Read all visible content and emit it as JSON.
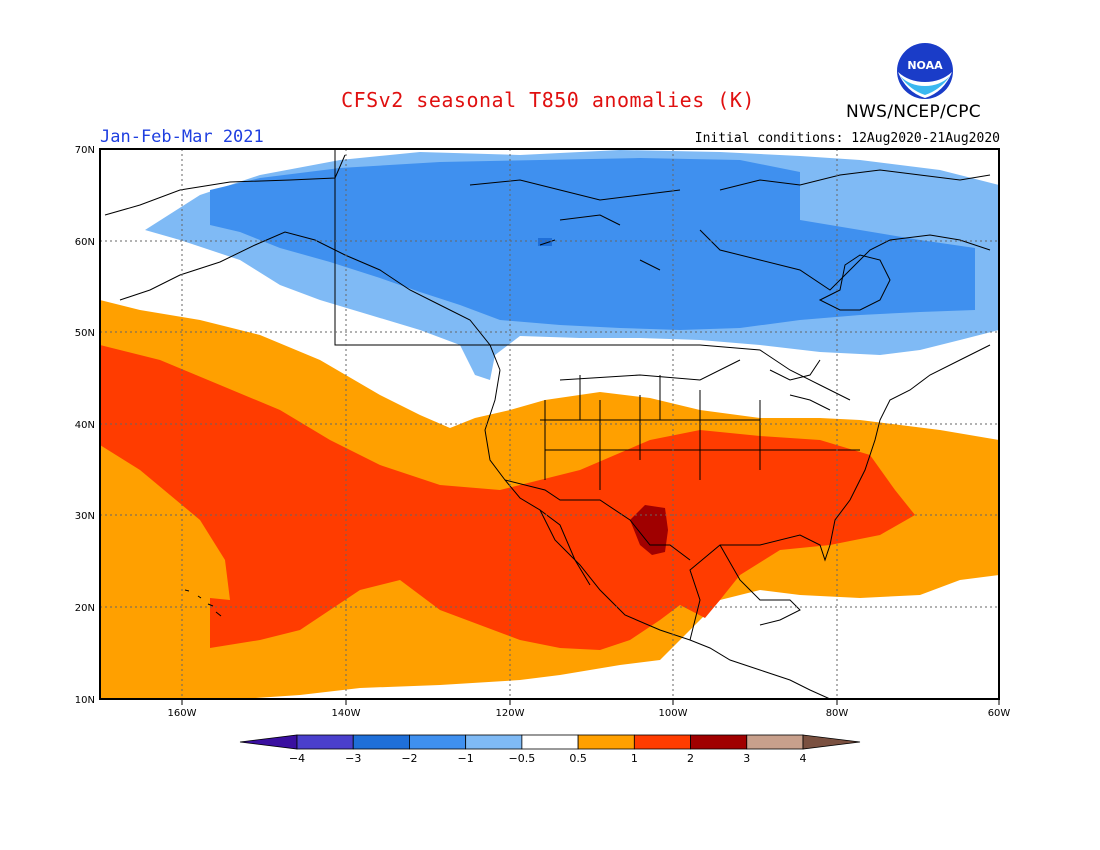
{
  "title": "CFSv2 seasonal T850 anomalies (K)",
  "organization": "NWS/NCEP/CPC",
  "logo_text": "NOAA",
  "period": "Jan-Feb-Mar 2021",
  "initial_conditions": "Initial conditions: 12Aug2020-21Aug2020",
  "lat_labels": [
    "70N",
    "60N",
    "50N",
    "40N",
    "30N",
    "20N",
    "10N"
  ],
  "lon_labels": [
    "160W",
    "140W",
    "120W",
    "100W",
    "80W",
    "60W"
  ],
  "colorbar": {
    "labels": [
      "-4",
      "-3",
      "-2",
      "-1",
      "-0.5",
      "0.5",
      "1",
      "2",
      "3",
      "4"
    ],
    "colors": [
      "#3a0fa0",
      "#4a3fcc",
      "#1f6fd8",
      "#3f90ef",
      "#7fbaf5",
      "#ffffff",
      "#ffa000",
      "#ff3c00",
      "#a00000",
      "#c8a08c",
      "#7a5040"
    ]
  },
  "icons": {
    "logo": "noaa-logo-icon"
  }
}
